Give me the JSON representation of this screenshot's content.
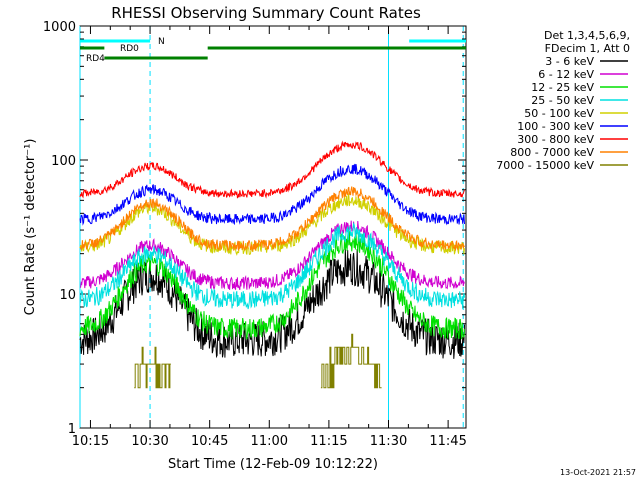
{
  "chart_data": {
    "type": "line",
    "title": "RHESSI Observing Summary Count Rates",
    "xlabel": "Start Time (12-Feb-09 10:12:22)",
    "ylabel": "Count Rate (s⁻¹ detector⁻¹)",
    "y_scale": "log",
    "ylim": [
      1,
      1000
    ],
    "xlim_minutes": [
      12.37,
      109.5
    ],
    "x_ticks": [
      {
        "t": 15,
        "label": "10:15"
      },
      {
        "t": 30,
        "label": "10:30"
      },
      {
        "t": 45,
        "label": "10:45"
      },
      {
        "t": 60,
        "label": "11:00"
      },
      {
        "t": 75,
        "label": "11:15"
      },
      {
        "t": 90,
        "label": "11:30"
      },
      {
        "t": 105,
        "label": "11:45"
      }
    ],
    "y_ticks": [
      {
        "v": 1,
        "label": "1"
      },
      {
        "v": 10,
        "label": "10"
      },
      {
        "v": 100,
        "label": "100"
      },
      {
        "v": 1000,
        "label": "1000"
      }
    ],
    "legend_header": [
      "Det 1,3,4,5,6,9,",
      "FDecim 1, Att 0"
    ],
    "legend_placement": "right",
    "series": [
      {
        "name": "3 - 6 keV",
        "color": "#000000",
        "base": 4.5,
        "peak1": 14,
        "peak2": 16,
        "noise": 0.14
      },
      {
        "name": "6 - 12 keV",
        "color": "#d000d0",
        "base": 12,
        "peak1": 23,
        "peak2": 32,
        "noise": 0.05
      },
      {
        "name": "12 - 25 keV",
        "color": "#00e000",
        "base": 5.5,
        "peak1": 17,
        "peak2": 25,
        "noise": 0.08
      },
      {
        "name": "25 - 50 keV",
        "color": "#00e0e0",
        "base": 9,
        "peak1": 20,
        "peak2": 29,
        "noise": 0.07
      },
      {
        "name": "50 - 100 keV",
        "color": "#d0d000",
        "base": 22,
        "peak1": 44,
        "peak2": 50,
        "noise": 0.05
      },
      {
        "name": "100 - 300 keV",
        "color": "#0000ff",
        "base": 36,
        "peak1": 60,
        "peak2": 86,
        "noise": 0.04
      },
      {
        "name": "300 - 800 keV",
        "color": "#ff0000",
        "base": 56,
        "peak1": 90,
        "peak2": 130,
        "noise": 0.03
      },
      {
        "name": "800 - 7000 keV",
        "color": "#ff8000",
        "base": 23,
        "peak1": 48,
        "peak2": 58,
        "noise": 0.04
      },
      {
        "name": "7000 - 15000 keV",
        "color": "#808000",
        "base": 1.0,
        "peak1": 3.0,
        "peak2": 3.6,
        "noise": 0.0
      }
    ],
    "peaks_minutes": [
      30.2,
      80.5
    ],
    "flags": [
      {
        "name": "N",
        "color": "#00ffff",
        "segments": [
          [
            12.37,
            30
          ],
          [
            95.2,
            109.5
          ]
        ],
        "level": 1
      },
      {
        "name": "RD0",
        "color": "#008000",
        "segments": [
          [
            12.37,
            18.5
          ],
          [
            44.5,
            109.5
          ]
        ],
        "level": 2
      },
      {
        "name": "RD4",
        "color": "#008000",
        "segments": [
          [
            18.5,
            44.5
          ]
        ],
        "level": 3
      }
    ],
    "night_lines_minutes": {
      "cyan_solid": [
        12.37,
        90
      ],
      "cyan_dashed": [
        30,
        108.8
      ]
    }
  },
  "footer_date": "13-Oct-2021 21:57"
}
